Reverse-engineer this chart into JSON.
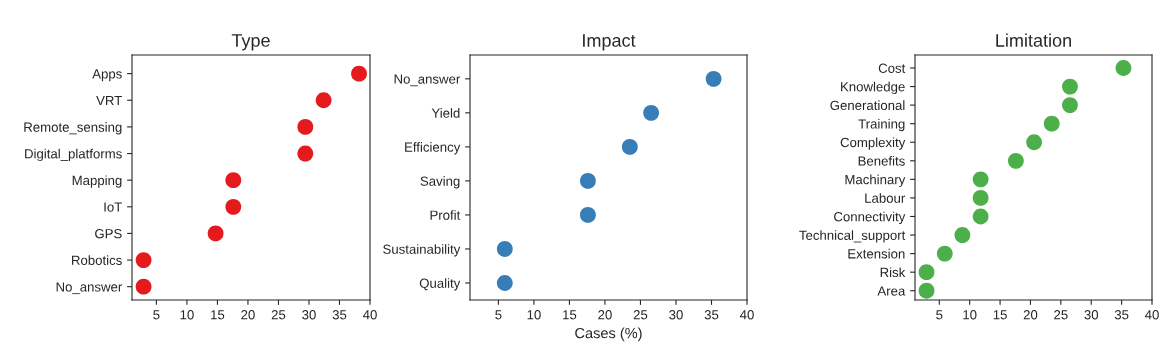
{
  "chart_data": [
    {
      "type": "scatter",
      "title": "Type",
      "orientation": "horizontal",
      "categories": [
        "Apps",
        "VRT",
        "Remote_sensing",
        "Digital_platforms",
        "Mapping",
        "IoT",
        "GPS",
        "Robotics",
        "No_answer"
      ],
      "series": [
        {
          "color": "#e41a1c",
          "values": [
            38.2,
            32.4,
            29.4,
            29.4,
            17.6,
            17.6,
            14.7,
            2.9,
            2.9
          ]
        }
      ],
      "xlim": [
        1,
        40
      ],
      "xticks": [
        5,
        10,
        15,
        20,
        25,
        30,
        35,
        40
      ],
      "grid": false,
      "legend": false,
      "marker": "circle"
    },
    {
      "type": "scatter",
      "title": "Impact",
      "xlabel": "Cases (%)",
      "orientation": "horizontal",
      "categories": [
        "No_answer",
        "Yield",
        "Efficiency",
        "Saving",
        "Profit",
        "Sustainability",
        "Quality"
      ],
      "series": [
        {
          "color": "#377eb8",
          "values": [
            35.3,
            26.5,
            23.5,
            17.6,
            17.6,
            5.9,
            5.9
          ]
        }
      ],
      "xlim": [
        1,
        40
      ],
      "xticks": [
        5,
        10,
        15,
        20,
        25,
        30,
        35,
        40
      ],
      "grid": false,
      "legend": false,
      "marker": "circle"
    },
    {
      "type": "scatter",
      "title": "Limitation",
      "orientation": "horizontal",
      "categories": [
        "Cost",
        "Knowledge",
        "Generational",
        "Training",
        "Complexity",
        "Benefits",
        "Machinary",
        "Labour",
        "Connectivity",
        "Technical_support",
        "Extension",
        "Risk",
        "Area"
      ],
      "series": [
        {
          "color": "#4daf4a",
          "values": [
            35.3,
            26.5,
            26.5,
            23.5,
            20.6,
            17.6,
            11.8,
            11.8,
            11.8,
            8.8,
            5.9,
            2.9,
            2.9
          ]
        }
      ],
      "xlim": [
        1,
        40
      ],
      "xticks": [
        5,
        10,
        15,
        20,
        25,
        30,
        35,
        40
      ],
      "grid": false,
      "legend": false,
      "marker": "circle"
    }
  ]
}
